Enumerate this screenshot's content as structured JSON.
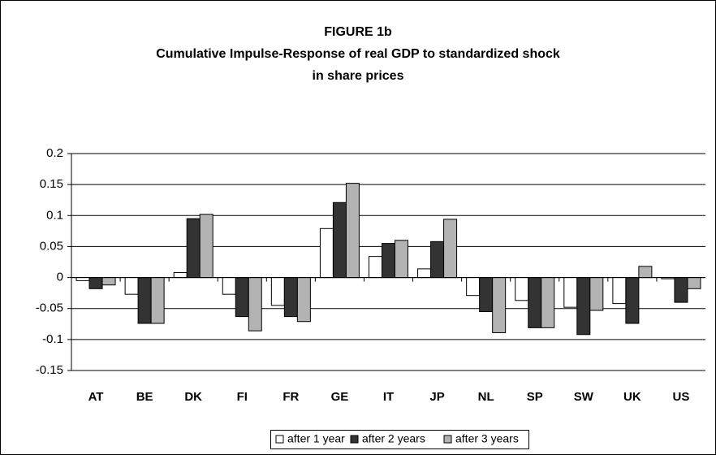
{
  "chart_data": {
    "type": "bar",
    "title": [
      "FIGURE 1b",
      "Cumulative Impulse-Response of real GDP to standardized shock",
      "in share prices"
    ],
    "categories": [
      "AT",
      "BE",
      "DK",
      "FI",
      "FR",
      "GE",
      "IT",
      "JP",
      "NL",
      "SP",
      "SW",
      "UK",
      "US"
    ],
    "series": [
      {
        "name": "after 1 year",
        "color": "#ffffff",
        "values": [
          -0.005,
          -0.027,
          0.008,
          -0.027,
          -0.045,
          0.079,
          0.034,
          0.014,
          -0.029,
          -0.037,
          -0.048,
          -0.042,
          -0.002
        ]
      },
      {
        "name": "after 2 years",
        "color": "#333333",
        "values": [
          -0.018,
          -0.074,
          0.095,
          -0.063,
          -0.063,
          0.121,
          0.055,
          0.058,
          -0.055,
          -0.081,
          -0.092,
          -0.074,
          -0.04
        ]
      },
      {
        "name": "after 3 years",
        "color": "#b3b3b3",
        "values": [
          -0.012,
          -0.074,
          0.102,
          -0.086,
          -0.071,
          0.152,
          0.06,
          0.094,
          -0.089,
          -0.081,
          -0.053,
          0.018,
          -0.018
        ]
      }
    ],
    "ylim": [
      -0.15,
      0.2
    ],
    "yticks": [
      -0.15,
      -0.1,
      -0.05,
      0,
      0.05,
      0.1,
      0.15,
      0.2
    ],
    "grid": true,
    "legend": "bottom"
  }
}
